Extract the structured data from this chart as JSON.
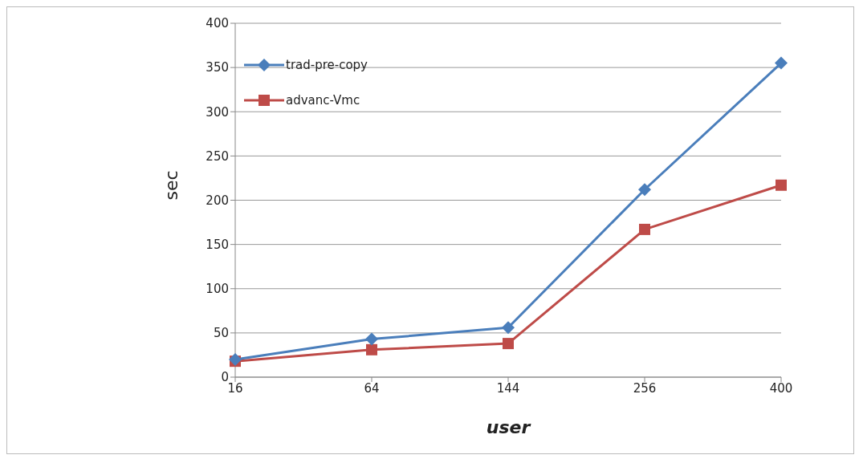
{
  "chart_data": {
    "type": "line",
    "xlabel": "user",
    "ylabel": "sec",
    "categories": [
      "16",
      "64",
      "144",
      "256",
      "400"
    ],
    "series": [
      {
        "name": "trad-pre-copy",
        "color": "#4a7ebb",
        "marker": "diamond",
        "values": [
          20,
          43,
          56,
          212,
          355
        ]
      },
      {
        "name": "advanc-Vmc",
        "color": "#be4b48",
        "marker": "square",
        "values": [
          18,
          31,
          38,
          167,
          217
        ]
      }
    ],
    "ylim": [
      0,
      400
    ],
    "yticks": [
      0,
      50,
      100,
      150,
      200,
      250,
      300,
      350,
      400
    ],
    "grid": "y",
    "legend": "top left",
    "line_style": "solid"
  }
}
